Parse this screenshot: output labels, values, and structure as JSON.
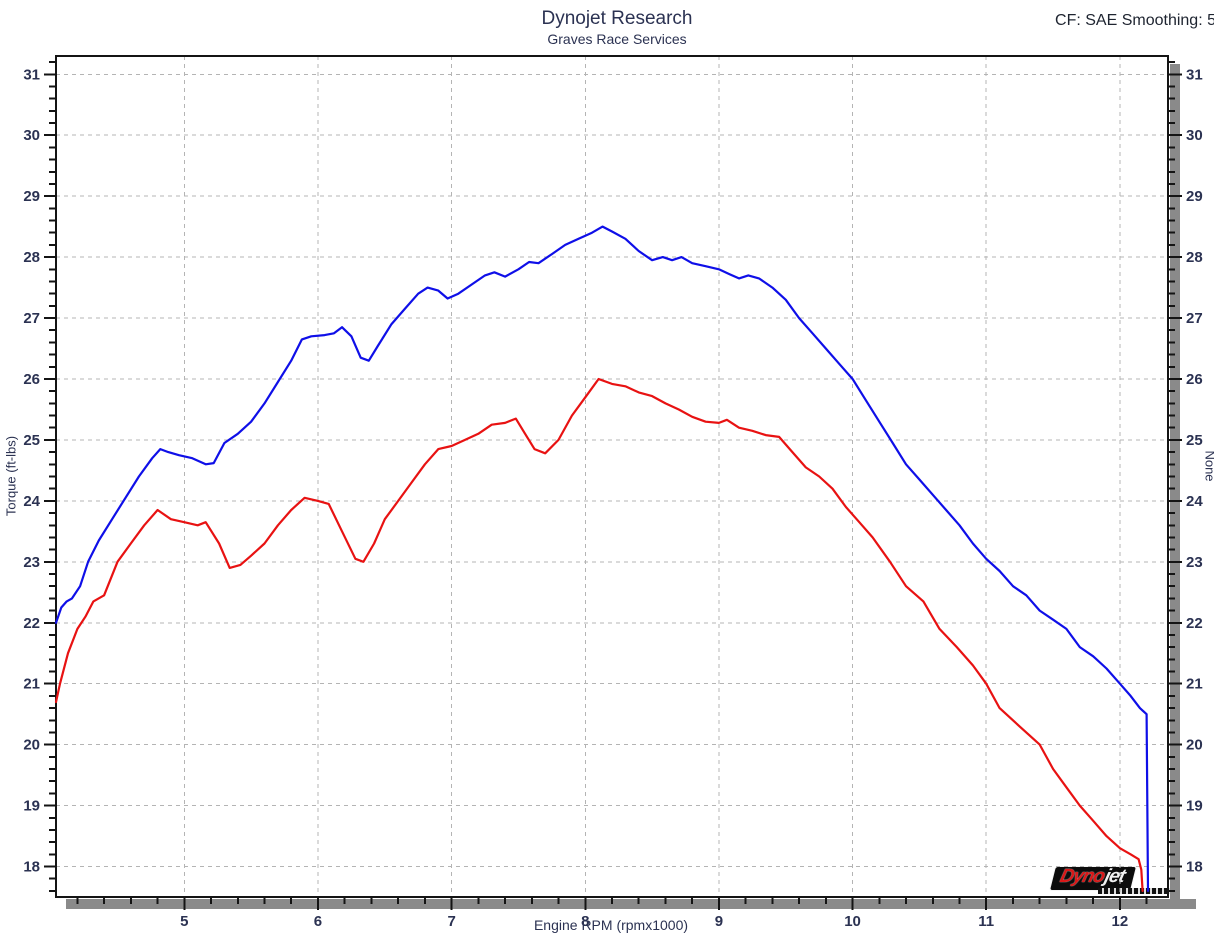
{
  "header": {
    "title": "Dynojet Research",
    "subtitle": "Graves Race Services",
    "cf_label": "CF: SAE Smoothing: 5"
  },
  "axes": {
    "x_label": "Engine RPM (rpmx1000)",
    "y_left_label": "Torque (ft-lbs)",
    "y_right_label": "None"
  },
  "logo": {
    "brand_left": "Dyno",
    "brand_right": "jet"
  },
  "colors": {
    "run_blue": "#0f0fe8",
    "run_red": "#e81212",
    "grid": "#b4b4b4",
    "frame": "#141414",
    "shadow": "#8a8a8a",
    "tick_text": "#2b3252"
  },
  "chart_data": {
    "type": "line",
    "title": "Dynojet Research",
    "subtitle": "Graves Race Services",
    "xlabel": "Engine RPM (rpmx1000)",
    "ylabel": "Torque (ft-lbs)",
    "right_axis_label": "None",
    "xlim": [
      4.04,
      12.36
    ],
    "ylim": [
      17.5,
      31.3
    ],
    "x_major_ticks": [
      5,
      6,
      7,
      8,
      9,
      10,
      11,
      12
    ],
    "y_major_ticks": [
      18,
      19,
      20,
      21,
      22,
      23,
      24,
      25,
      26,
      27,
      28,
      29,
      30,
      31
    ],
    "minor_tick_step": 0.2,
    "grid": "dashed",
    "legend": "none",
    "series": [
      {
        "name": "blue",
        "color": "#0f0fe8",
        "points": [
          [
            4.04,
            22.0
          ],
          [
            4.08,
            22.25
          ],
          [
            4.12,
            22.35
          ],
          [
            4.16,
            22.4
          ],
          [
            4.22,
            22.6
          ],
          [
            4.28,
            23.0
          ],
          [
            4.36,
            23.35
          ],
          [
            4.46,
            23.7
          ],
          [
            4.56,
            24.05
          ],
          [
            4.66,
            24.4
          ],
          [
            4.76,
            24.7
          ],
          [
            4.82,
            24.85
          ],
          [
            4.88,
            24.8
          ],
          [
            4.96,
            24.75
          ],
          [
            5.06,
            24.7
          ],
          [
            5.16,
            24.6
          ],
          [
            5.22,
            24.62
          ],
          [
            5.3,
            24.95
          ],
          [
            5.4,
            25.1
          ],
          [
            5.5,
            25.3
          ],
          [
            5.6,
            25.6
          ],
          [
            5.7,
            25.95
          ],
          [
            5.8,
            26.3
          ],
          [
            5.88,
            26.65
          ],
          [
            5.95,
            26.7
          ],
          [
            6.05,
            26.72
          ],
          [
            6.12,
            26.75
          ],
          [
            6.18,
            26.85
          ],
          [
            6.25,
            26.7
          ],
          [
            6.32,
            26.35
          ],
          [
            6.38,
            26.3
          ],
          [
            6.45,
            26.55
          ],
          [
            6.55,
            26.9
          ],
          [
            6.65,
            27.15
          ],
          [
            6.75,
            27.4
          ],
          [
            6.82,
            27.5
          ],
          [
            6.9,
            27.45
          ],
          [
            6.97,
            27.32
          ],
          [
            7.05,
            27.4
          ],
          [
            7.15,
            27.55
          ],
          [
            7.25,
            27.7
          ],
          [
            7.32,
            27.75
          ],
          [
            7.4,
            27.68
          ],
          [
            7.5,
            27.8
          ],
          [
            7.58,
            27.92
          ],
          [
            7.65,
            27.9
          ],
          [
            7.75,
            28.05
          ],
          [
            7.85,
            28.2
          ],
          [
            7.95,
            28.3
          ],
          [
            8.05,
            28.4
          ],
          [
            8.13,
            28.5
          ],
          [
            8.2,
            28.42
          ],
          [
            8.3,
            28.3
          ],
          [
            8.4,
            28.1
          ],
          [
            8.5,
            27.95
          ],
          [
            8.58,
            28.0
          ],
          [
            8.65,
            27.95
          ],
          [
            8.72,
            28.0
          ],
          [
            8.8,
            27.9
          ],
          [
            8.9,
            27.85
          ],
          [
            9.0,
            27.8
          ],
          [
            9.08,
            27.72
          ],
          [
            9.15,
            27.65
          ],
          [
            9.22,
            27.7
          ],
          [
            9.3,
            27.65
          ],
          [
            9.4,
            27.5
          ],
          [
            9.5,
            27.3
          ],
          [
            9.6,
            27.0
          ],
          [
            9.7,
            26.75
          ],
          [
            9.8,
            26.5
          ],
          [
            9.9,
            26.25
          ],
          [
            10.0,
            26.0
          ],
          [
            10.1,
            25.65
          ],
          [
            10.2,
            25.3
          ],
          [
            10.3,
            24.95
          ],
          [
            10.4,
            24.6
          ],
          [
            10.5,
            24.35
          ],
          [
            10.6,
            24.1
          ],
          [
            10.7,
            23.85
          ],
          [
            10.8,
            23.6
          ],
          [
            10.9,
            23.3
          ],
          [
            11.0,
            23.05
          ],
          [
            11.1,
            22.85
          ],
          [
            11.2,
            22.6
          ],
          [
            11.3,
            22.45
          ],
          [
            11.4,
            22.2
          ],
          [
            11.5,
            22.05
          ],
          [
            11.6,
            21.9
          ],
          [
            11.7,
            21.6
          ],
          [
            11.8,
            21.45
          ],
          [
            11.9,
            21.25
          ],
          [
            12.0,
            21.0
          ],
          [
            12.08,
            20.8
          ],
          [
            12.15,
            20.6
          ],
          [
            12.2,
            20.5
          ],
          [
            12.21,
            17.6
          ]
        ]
      },
      {
        "name": "red",
        "color": "#e81212",
        "points": [
          [
            4.04,
            20.7
          ],
          [
            4.07,
            21.0
          ],
          [
            4.13,
            21.5
          ],
          [
            4.2,
            21.9
          ],
          [
            4.26,
            22.1
          ],
          [
            4.32,
            22.35
          ],
          [
            4.4,
            22.45
          ],
          [
            4.5,
            23.0
          ],
          [
            4.6,
            23.3
          ],
          [
            4.7,
            23.6
          ],
          [
            4.8,
            23.85
          ],
          [
            4.9,
            23.7
          ],
          [
            5.0,
            23.65
          ],
          [
            5.1,
            23.6
          ],
          [
            5.16,
            23.65
          ],
          [
            5.26,
            23.3
          ],
          [
            5.34,
            22.9
          ],
          [
            5.42,
            22.95
          ],
          [
            5.5,
            23.1
          ],
          [
            5.6,
            23.3
          ],
          [
            5.7,
            23.6
          ],
          [
            5.8,
            23.85
          ],
          [
            5.9,
            24.05
          ],
          [
            6.0,
            24.0
          ],
          [
            6.08,
            23.95
          ],
          [
            6.18,
            23.5
          ],
          [
            6.28,
            23.05
          ],
          [
            6.34,
            23.0
          ],
          [
            6.42,
            23.3
          ],
          [
            6.5,
            23.7
          ],
          [
            6.6,
            24.0
          ],
          [
            6.7,
            24.3
          ],
          [
            6.8,
            24.6
          ],
          [
            6.9,
            24.85
          ],
          [
            7.0,
            24.9
          ],
          [
            7.1,
            25.0
          ],
          [
            7.2,
            25.1
          ],
          [
            7.3,
            25.25
          ],
          [
            7.4,
            25.28
          ],
          [
            7.48,
            25.35
          ],
          [
            7.55,
            25.1
          ],
          [
            7.62,
            24.85
          ],
          [
            7.7,
            24.78
          ],
          [
            7.8,
            25.0
          ],
          [
            7.9,
            25.4
          ],
          [
            8.0,
            25.7
          ],
          [
            8.1,
            26.0
          ],
          [
            8.2,
            25.92
          ],
          [
            8.3,
            25.88
          ],
          [
            8.4,
            25.78
          ],
          [
            8.5,
            25.72
          ],
          [
            8.6,
            25.6
          ],
          [
            8.7,
            25.5
          ],
          [
            8.8,
            25.38
          ],
          [
            8.9,
            25.3
          ],
          [
            9.0,
            25.28
          ],
          [
            9.06,
            25.33
          ],
          [
            9.15,
            25.2
          ],
          [
            9.25,
            25.15
          ],
          [
            9.35,
            25.08
          ],
          [
            9.45,
            25.05
          ],
          [
            9.55,
            24.8
          ],
          [
            9.65,
            24.55
          ],
          [
            9.75,
            24.4
          ],
          [
            9.85,
            24.2
          ],
          [
            9.95,
            23.9
          ],
          [
            10.05,
            23.65
          ],
          [
            10.15,
            23.4
          ],
          [
            10.28,
            23.0
          ],
          [
            10.4,
            22.6
          ],
          [
            10.53,
            22.35
          ],
          [
            10.65,
            21.9
          ],
          [
            10.78,
            21.6
          ],
          [
            10.9,
            21.3
          ],
          [
            11.0,
            21.0
          ],
          [
            11.1,
            20.6
          ],
          [
            11.25,
            20.3
          ],
          [
            11.4,
            20.0
          ],
          [
            11.5,
            19.6
          ],
          [
            11.6,
            19.3
          ],
          [
            11.7,
            19.0
          ],
          [
            11.8,
            18.75
          ],
          [
            11.9,
            18.5
          ],
          [
            12.0,
            18.3
          ],
          [
            12.08,
            18.2
          ],
          [
            12.14,
            18.12
          ],
          [
            12.16,
            17.95
          ],
          [
            12.17,
            17.6
          ]
        ]
      }
    ]
  }
}
